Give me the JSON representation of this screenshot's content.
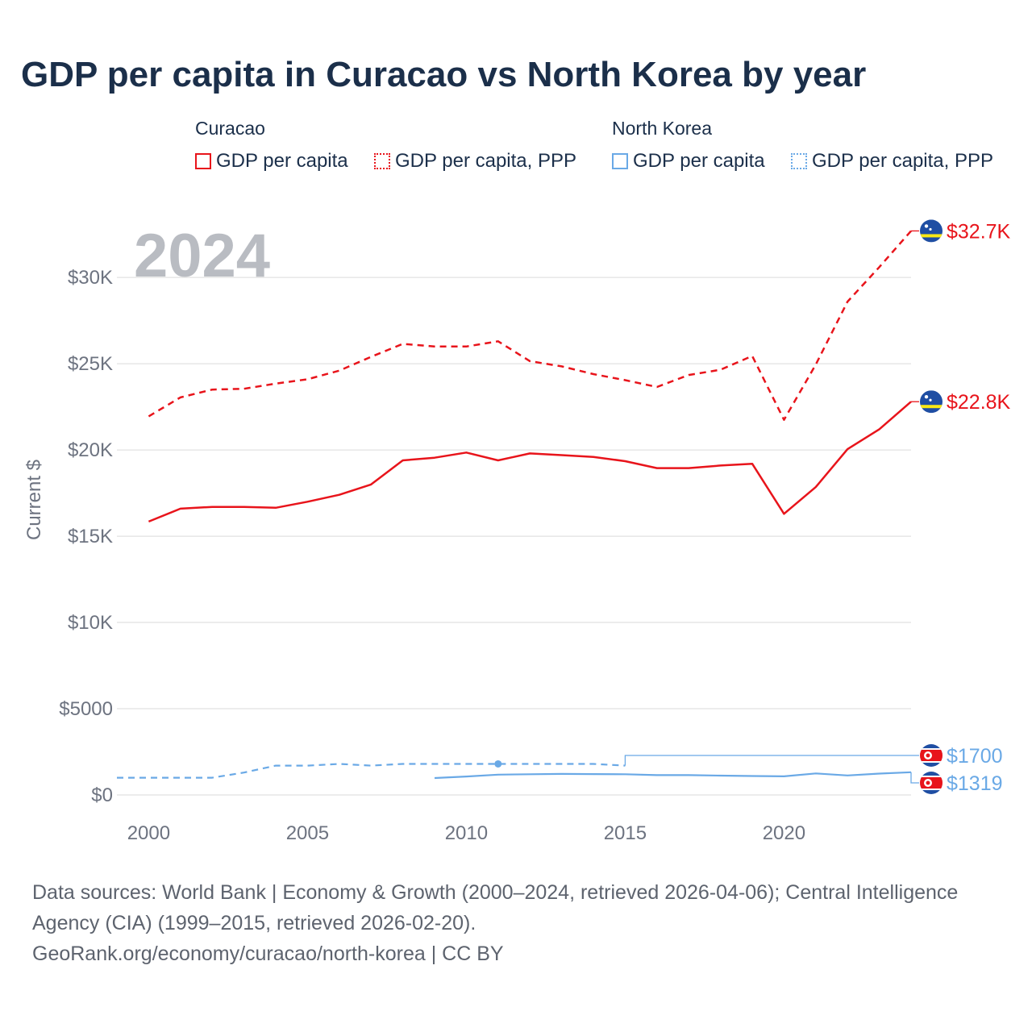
{
  "title": "GDP per capita in Curacao vs North Korea by year",
  "legend": {
    "groups": [
      {
        "name": "Curacao",
        "items": [
          "GDP per capita",
          "GDP per capita, PPP"
        ]
      },
      {
        "name": "North Korea",
        "items": [
          "GDP per capita",
          "GDP per capita, PPP"
        ]
      }
    ]
  },
  "colors": {
    "curacao": "#e8141b",
    "north_korea": "#6aa9e6",
    "grid": "#e6e6e6",
    "axis_text": "#6d7380",
    "year_watermark": "#b9bcc2",
    "title": "#1b2f4a"
  },
  "footer": {
    "sources": "Data sources: World Bank | Economy & Growth (2000–2024, retrieved 2026-04-06); Central Intelligence Agency (CIA) (1999–2015, retrieved 2026-02-20).",
    "credit": "GeoRank.org/economy/curacao/north-korea | CC BY"
  },
  "chart_data": {
    "type": "line",
    "year_label": "2024",
    "ylabel": "Current $",
    "xlim": [
      1999,
      2024
    ],
    "ylim": [
      0,
      33000
    ],
    "x_ticks": [
      2000,
      2005,
      2010,
      2015,
      2020
    ],
    "y_ticks": [
      0,
      5000,
      10000,
      15000,
      20000,
      25000,
      30000
    ],
    "y_tick_labels": [
      "$0",
      "$5000",
      "$10K",
      "$15K",
      "$20K",
      "$25K",
      "$30K"
    ],
    "series": [
      {
        "name": "Curacao GDP per capita",
        "country": "curacao",
        "dash": false,
        "x": [
          2000,
          2001,
          2002,
          2003,
          2004,
          2005,
          2006,
          2007,
          2008,
          2009,
          2010,
          2011,
          2012,
          2013,
          2014,
          2015,
          2016,
          2017,
          2018,
          2019,
          2020,
          2021,
          2022,
          2023,
          2024
        ],
        "values": [
          15850,
          16600,
          16700,
          16700,
          16650,
          17000,
          17400,
          18000,
          19400,
          19550,
          19850,
          19400,
          19800,
          19700,
          19600,
          19350,
          18950,
          18950,
          19100,
          19200,
          16300,
          17850,
          20050,
          21200,
          22800
        ],
        "end_label": "$22.8K"
      },
      {
        "name": "Curacao GDP per capita, PPP",
        "country": "curacao",
        "dash": true,
        "x": [
          2000,
          2001,
          2002,
          2003,
          2004,
          2005,
          2006,
          2007,
          2008,
          2009,
          2010,
          2011,
          2012,
          2013,
          2014,
          2015,
          2016,
          2017,
          2018,
          2019,
          2020,
          2021,
          2022,
          2023,
          2024
        ],
        "values": [
          21950,
          23050,
          23500,
          23550,
          23850,
          24100,
          24600,
          25400,
          26150,
          26000,
          26000,
          26300,
          25150,
          24850,
          24400,
          24050,
          23650,
          24350,
          24650,
          25450,
          21750,
          24950,
          28600,
          30600,
          32700
        ],
        "end_label": "$32.7K"
      },
      {
        "name": "North Korea GDP per capita",
        "country": "north_korea",
        "dash": false,
        "x": [
          2009,
          2010,
          2011,
          2012,
          2013,
          2014,
          2015,
          2016,
          2017,
          2018,
          2019,
          2020,
          2021,
          2022,
          2023,
          2024
        ],
        "values": [
          980,
          1070,
          1180,
          1200,
          1220,
          1210,
          1200,
          1150,
          1150,
          1120,
          1100,
          1080,
          1250,
          1130,
          1240,
          1319
        ],
        "end_label": "$1319"
      },
      {
        "name": "North Korea GDP per capita, PPP",
        "country": "north_korea",
        "dash": true,
        "x": [
          1999,
          2000,
          2001,
          2002,
          2003,
          2004,
          2005,
          2006,
          2007,
          2008,
          2009,
          2010,
          2011,
          2012,
          2013,
          2014,
          2015
        ],
        "values": [
          1000,
          1000,
          1000,
          1000,
          1300,
          1700,
          1700,
          1800,
          1700,
          1800,
          1800,
          1800,
          1800,
          1800,
          1800,
          1800,
          1700
        ],
        "marker_x": 2011,
        "end_label": "$1700"
      }
    ]
  }
}
